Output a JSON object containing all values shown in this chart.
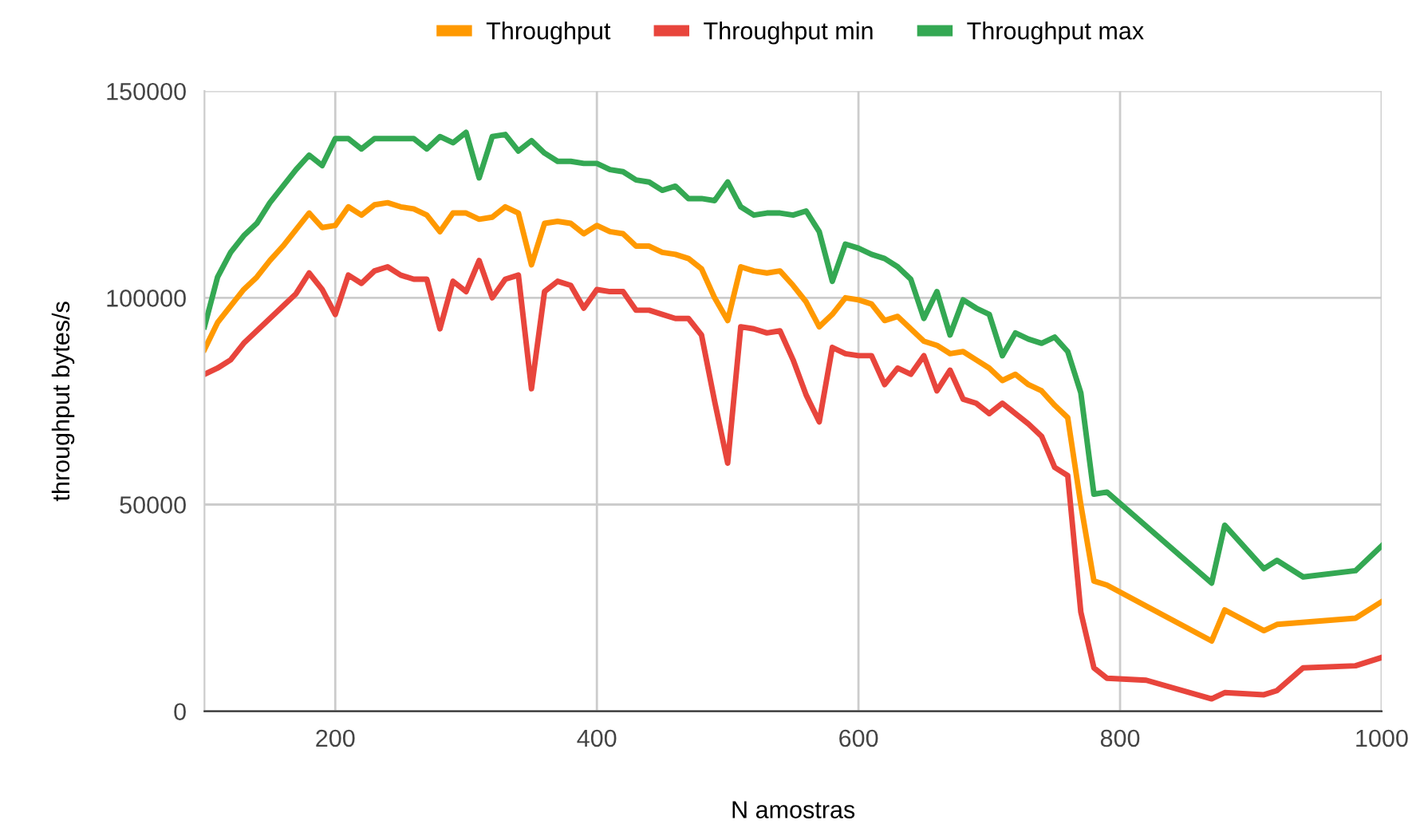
{
  "chart_data": {
    "type": "line",
    "xlabel": "N amostras",
    "ylabel": "throughput bytes/s",
    "xlim": [
      100,
      1000
    ],
    "xticks": [
      200,
      400,
      600,
      800,
      1000
    ],
    "ylim": [
      0,
      150000
    ],
    "yticks": [
      0,
      50000,
      100000,
      150000
    ],
    "grid": true,
    "legend": "top",
    "marker": "none",
    "line_style": "solid",
    "series": [
      {
        "name": "Throughput",
        "color": "#ff9900",
        "x": [
          100,
          110,
          120,
          130,
          140,
          150,
          160,
          170,
          180,
          190,
          200,
          210,
          220,
          230,
          240,
          250,
          260,
          270,
          280,
          290,
          300,
          310,
          320,
          330,
          340,
          350,
          360,
          370,
          380,
          390,
          400,
          410,
          420,
          430,
          440,
          450,
          460,
          470,
          480,
          490,
          500,
          510,
          520,
          530,
          540,
          550,
          560,
          570,
          580,
          590,
          600,
          610,
          620,
          630,
          640,
          650,
          660,
          670,
          680,
          690,
          700,
          710,
          720,
          730,
          740,
          750,
          760,
          770,
          780,
          790,
          870,
          880,
          910,
          920,
          980,
          1000
        ],
        "values": [
          87500,
          94000,
          98000,
          102000,
          105000,
          109000,
          112500,
          116500,
          120500,
          117000,
          117500,
          122000,
          120000,
          122500,
          123000,
          122000,
          121500,
          120000,
          116000,
          120500,
          120500,
          119000,
          119500,
          122000,
          120500,
          108000,
          118000,
          118500,
          118000,
          115500,
          117500,
          116000,
          115500,
          112500,
          112500,
          111000,
          110500,
          109500,
          107000,
          100000,
          94500,
          107500,
          106500,
          106000,
          106500,
          103000,
          99000,
          93000,
          96000,
          100000,
          99500,
          98500,
          94500,
          95500,
          92500,
          89500,
          88500,
          86500,
          87000,
          85000,
          83000,
          80000,
          81500,
          79000,
          77500,
          74000,
          71000,
          50000,
          31500,
          30500,
          17000,
          24500,
          19500,
          21000,
          22500,
          26500
        ]
      },
      {
        "name": "Throughput min",
        "color": "#e8453c",
        "x": [
          100,
          110,
          120,
          130,
          140,
          150,
          160,
          170,
          180,
          190,
          200,
          210,
          220,
          230,
          240,
          250,
          260,
          270,
          280,
          290,
          300,
          310,
          320,
          330,
          340,
          350,
          360,
          370,
          380,
          390,
          400,
          410,
          420,
          430,
          440,
          450,
          460,
          470,
          480,
          490,
          500,
          510,
          520,
          530,
          540,
          550,
          560,
          570,
          580,
          590,
          600,
          610,
          620,
          630,
          640,
          650,
          660,
          670,
          680,
          690,
          700,
          710,
          720,
          730,
          740,
          750,
          760,
          770,
          780,
          790,
          820,
          870,
          880,
          910,
          920,
          940,
          980,
          1000
        ],
        "values": [
          81500,
          83000,
          85000,
          89000,
          92000,
          95000,
          98000,
          101000,
          106000,
          102000,
          96000,
          105500,
          103500,
          106500,
          107500,
          105500,
          104500,
          104500,
          92500,
          104000,
          101500,
          109000,
          100000,
          104500,
          105500,
          78000,
          101500,
          104000,
          103000,
          97500,
          102000,
          101500,
          101500,
          97000,
          97000,
          96000,
          95000,
          95000,
          91000,
          75000,
          60000,
          93000,
          92500,
          91500,
          92000,
          85000,
          76500,
          70000,
          88000,
          86500,
          86000,
          86000,
          79000,
          83000,
          81500,
          86000,
          77500,
          82500,
          75500,
          74500,
          72000,
          74500,
          72000,
          69500,
          66500,
          59000,
          57000,
          24000,
          10500,
          8000,
          7500,
          3000,
          4500,
          4000,
          5000,
          10500,
          11000,
          13000
        ]
      },
      {
        "name": "Throughput max",
        "color": "#34a853",
        "x": [
          100,
          110,
          120,
          130,
          140,
          150,
          160,
          170,
          180,
          190,
          200,
          210,
          220,
          230,
          240,
          250,
          260,
          270,
          280,
          290,
          300,
          310,
          320,
          330,
          340,
          350,
          360,
          370,
          380,
          390,
          400,
          410,
          420,
          430,
          440,
          450,
          460,
          470,
          480,
          490,
          500,
          510,
          520,
          530,
          540,
          550,
          560,
          570,
          580,
          590,
          600,
          610,
          620,
          630,
          640,
          650,
          660,
          670,
          680,
          690,
          700,
          710,
          720,
          730,
          740,
          750,
          760,
          770,
          780,
          790,
          870,
          880,
          910,
          920,
          940,
          980,
          1000
        ],
        "values": [
          93000,
          105000,
          111000,
          115000,
          118000,
          123000,
          127000,
          131000,
          134500,
          132000,
          138500,
          138500,
          136000,
          138500,
          138500,
          138500,
          138500,
          136000,
          139000,
          137500,
          140000,
          129000,
          139000,
          139500,
          135500,
          138000,
          135000,
          133000,
          133000,
          132500,
          132500,
          131000,
          130500,
          128500,
          128000,
          126000,
          127000,
          124000,
          124000,
          123500,
          128000,
          122000,
          120000,
          120500,
          120500,
          120000,
          121000,
          116000,
          104000,
          113000,
          112000,
          110500,
          109500,
          107500,
          104500,
          95000,
          101500,
          91000,
          99500,
          97500,
          96000,
          86000,
          91500,
          90000,
          89000,
          90500,
          87000,
          77000,
          52500,
          53000,
          31000,
          45000,
          34500,
          36500,
          32500,
          34000,
          40000
        ]
      }
    ]
  }
}
